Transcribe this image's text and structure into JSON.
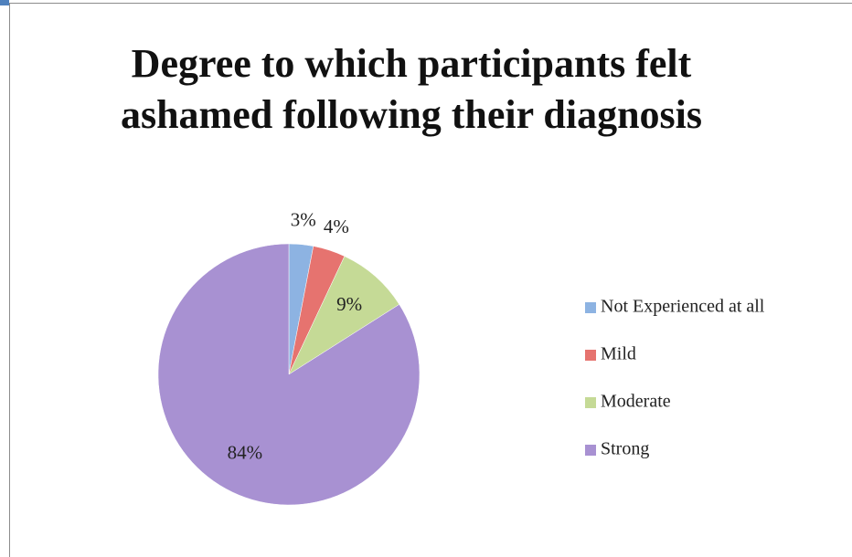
{
  "chart_data": {
    "type": "pie",
    "title": "Degree to which participants felt ashamed following their diagnosis",
    "categories": [
      "Not Experienced at all",
      "Mild",
      "Moderate",
      "Strong"
    ],
    "values": [
      3,
      4,
      9,
      84
    ],
    "value_labels": [
      "3%",
      "4%",
      "9%",
      "84%"
    ],
    "colors": [
      "#8db3e2",
      "#e6736f",
      "#c5da96",
      "#a891d2"
    ],
    "legend": "right"
  }
}
